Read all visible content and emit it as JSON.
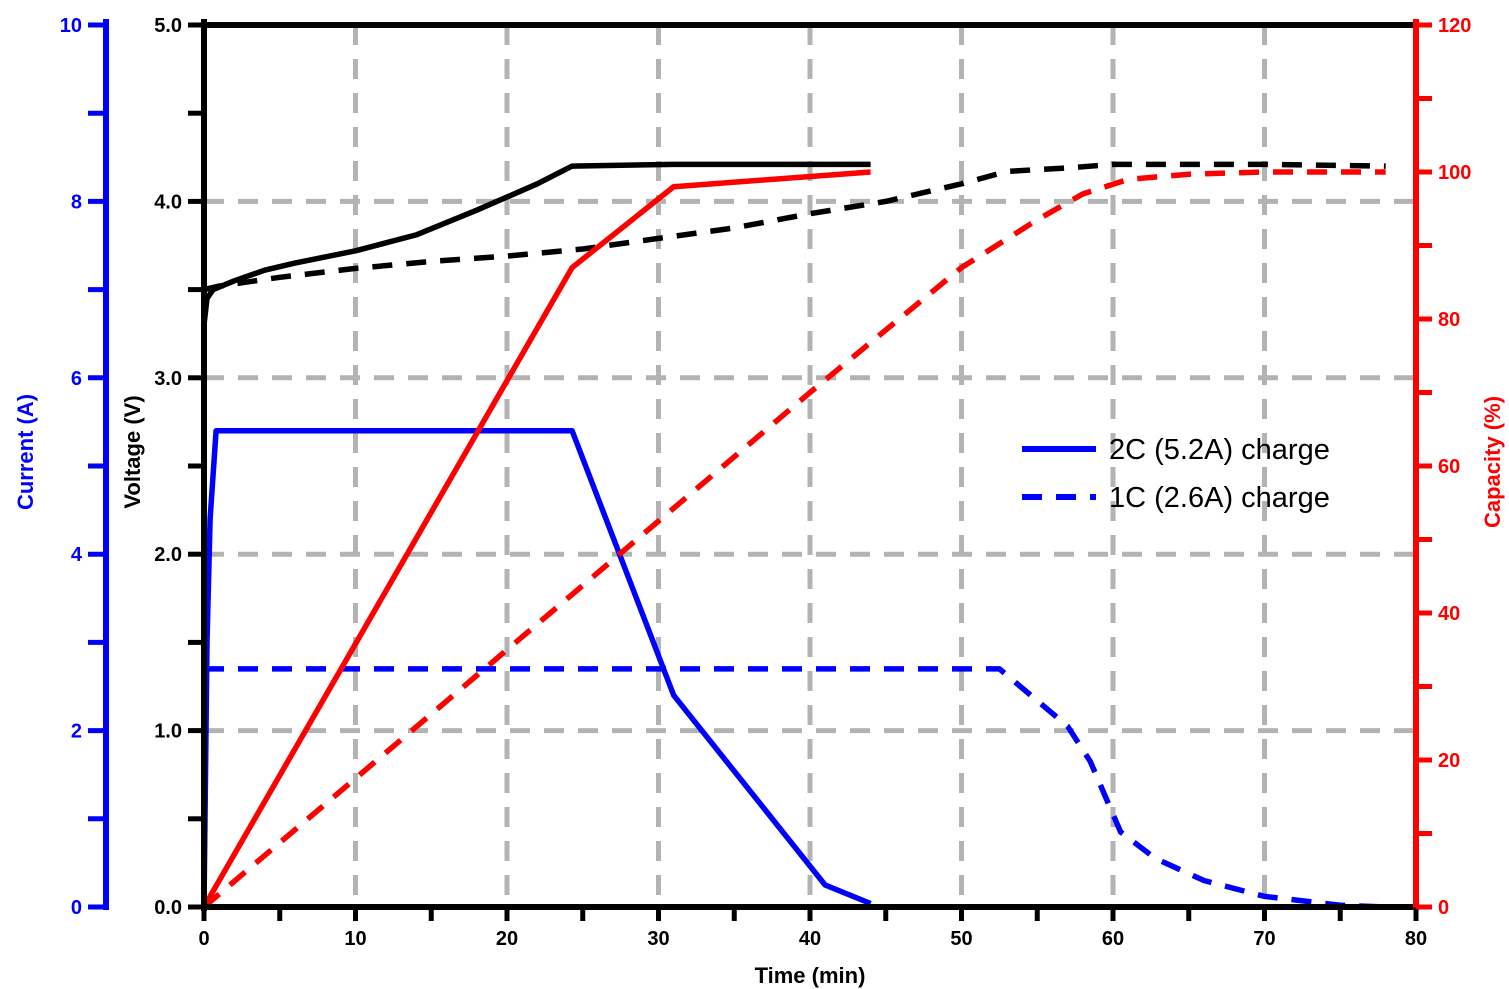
{
  "chart_data": {
    "type": "line",
    "xlabel": "Time (min)",
    "xlim": [
      0,
      80
    ],
    "xticks": [
      0,
      10,
      20,
      30,
      40,
      50,
      60,
      70,
      80
    ],
    "axes": {
      "current": {
        "label": "Current (A)",
        "lim": [
          0,
          10
        ],
        "ticks": [
          0,
          2,
          4,
          6,
          8,
          10
        ],
        "color": "#0000ff"
      },
      "voltage": {
        "label": "Voltage (V)",
        "lim": [
          0,
          5
        ],
        "ticks": [
          "0.0",
          "1.0",
          "2.0",
          "3.0",
          "4.0",
          "5.0"
        ],
        "color": "#000000"
      },
      "capacity": {
        "label": "Capacity (%)",
        "lim": [
          0,
          120
        ],
        "ticks": [
          0,
          20,
          40,
          60,
          80,
          100,
          120
        ],
        "color": "#ff0000"
      }
    },
    "grid": true,
    "legend": {
      "placement": "center-right",
      "entries": [
        {
          "label": "2C (5.2A) charge",
          "style": "solid",
          "color": "#0000ff"
        },
        {
          "label": "1C (2.6A) charge",
          "style": "dashed",
          "color": "#0000ff"
        }
      ]
    },
    "series": [
      {
        "axis": "current",
        "style": "solid",
        "color": "#0000ff",
        "x": [
          0,
          0.2,
          0.4,
          0.8,
          2,
          24.3,
          31,
          41,
          44
        ],
        "y": [
          0,
          3,
          4.4,
          5.4,
          5.4,
          5.4,
          2.4,
          0.25,
          0.04
        ]
      },
      {
        "axis": "current",
        "style": "dashed",
        "color": "#0000ff",
        "x": [
          0,
          52.5,
          57,
          58.5,
          60.5,
          62.8,
          66,
          70,
          75,
          78
        ],
        "y": [
          2.7,
          2.7,
          2.05,
          1.65,
          0.85,
          0.55,
          0.3,
          0.12,
          0.02,
          0
        ]
      },
      {
        "axis": "voltage",
        "style": "solid",
        "color": "#000000",
        "x": [
          0,
          0.2,
          0.6,
          2,
          4,
          6,
          10,
          14,
          18,
          22,
          24.3,
          31,
          44
        ],
        "y": [
          3.3,
          3.45,
          3.5,
          3.55,
          3.61,
          3.65,
          3.72,
          3.81,
          3.95,
          4.1,
          4.2,
          4.21,
          4.21
        ]
      },
      {
        "axis": "voltage",
        "style": "dashed",
        "color": "#000000",
        "x": [
          0,
          1,
          5,
          10,
          15,
          20,
          25,
          30,
          35,
          40,
          45,
          50,
          53,
          57,
          60,
          65,
          70,
          78
        ],
        "y": [
          3.5,
          3.52,
          3.57,
          3.62,
          3.66,
          3.69,
          3.73,
          3.79,
          3.85,
          3.93,
          4.0,
          4.1,
          4.17,
          4.19,
          4.21,
          4.21,
          4.21,
          4.2
        ]
      },
      {
        "axis": "capacity",
        "style": "solid",
        "color": "#ff0000",
        "x": [
          0,
          24.3,
          31,
          44
        ],
        "y": [
          0,
          87,
          98,
          100
        ]
      },
      {
        "axis": "capacity",
        "style": "dashed",
        "color": "#ff0000",
        "x": [
          0,
          10,
          20,
          30,
          40,
          50,
          55,
          58,
          61,
          65,
          70,
          78
        ],
        "y": [
          0,
          17.5,
          35,
          52.5,
          70,
          87,
          93.5,
          97,
          99,
          99.7,
          100,
          100
        ]
      }
    ]
  }
}
